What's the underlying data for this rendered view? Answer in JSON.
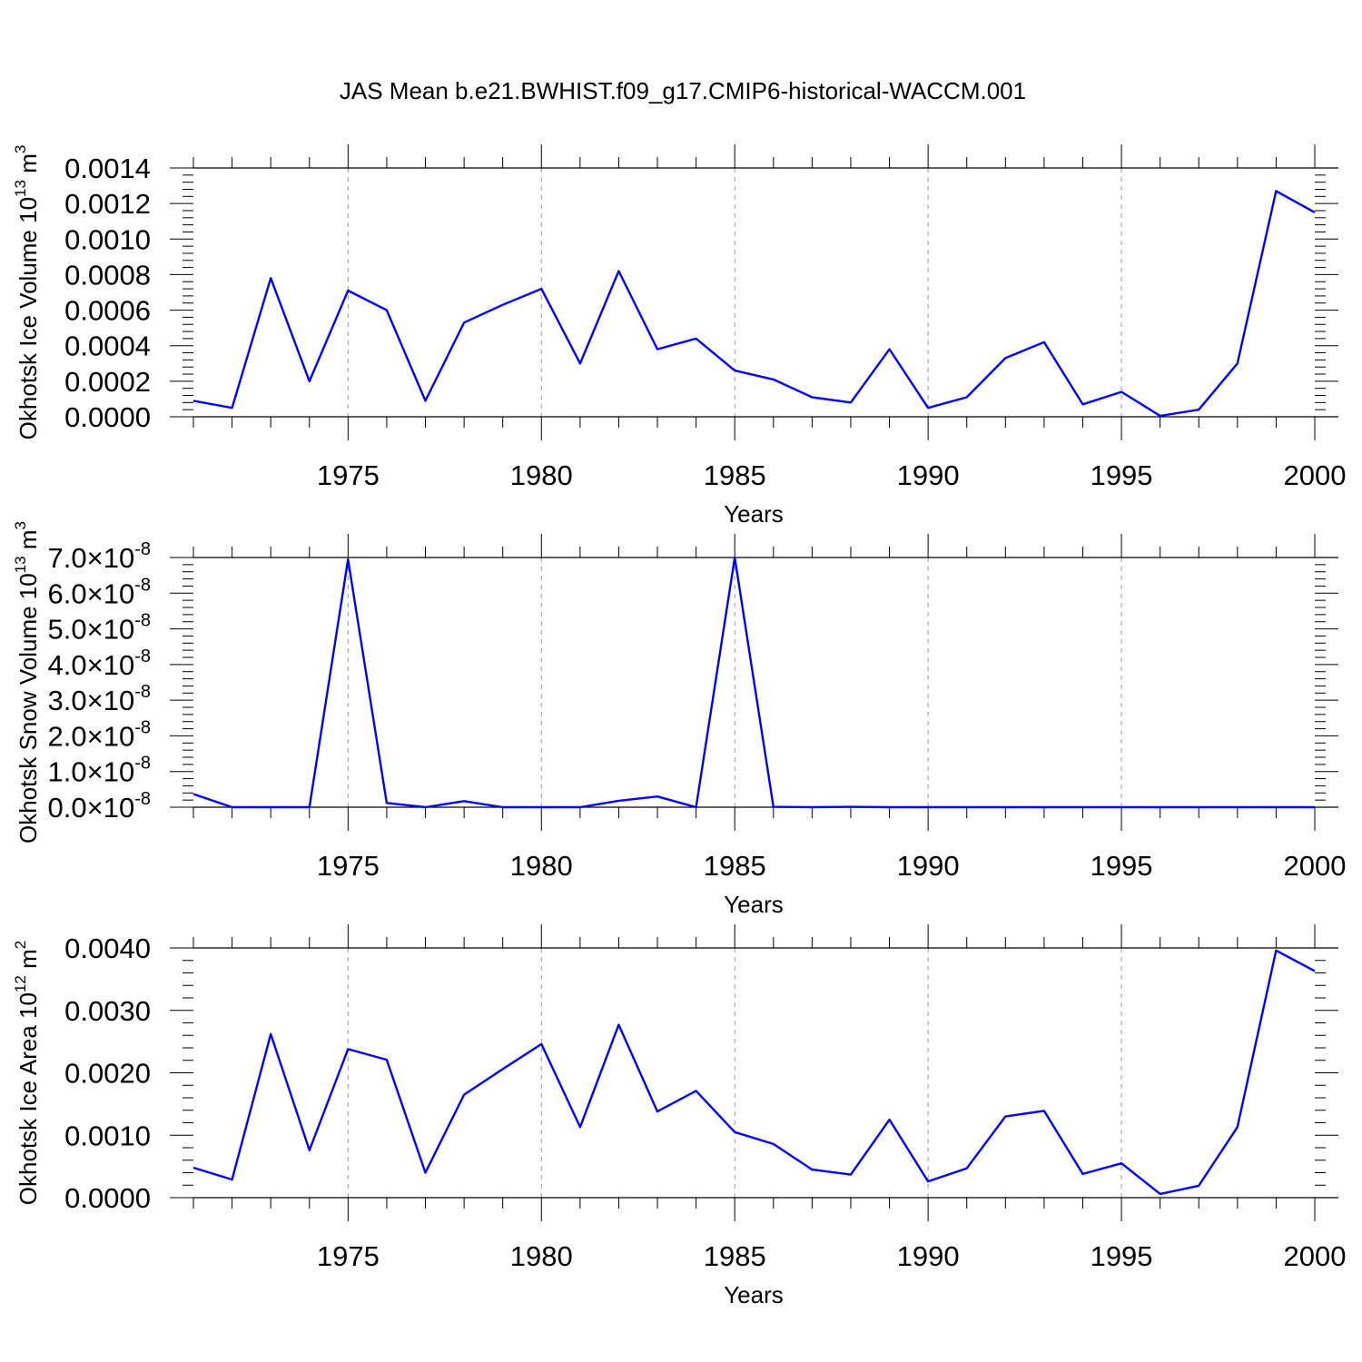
{
  "title": "JAS Mean b.e21.BWHIST.f09_g17.CMIP6-historical-WACCM.001",
  "colors": {
    "series": "#0000ff",
    "axis": "#000000",
    "grid": "#9a9a9a"
  },
  "chart_data": [
    {
      "type": "line",
      "ylabel": "Okhotsk Ice Volume 10",
      "ylabel_exp": "13",
      "ylabel_unit": " m",
      "ylabel_unit_exp": "3",
      "xlabel": "Years",
      "xlim": [
        1971,
        2000
      ],
      "ylim": [
        0,
        0.0014
      ],
      "x_tick_values": [
        1975,
        1980,
        1985,
        1990,
        1995,
        2000
      ],
      "x_tick_labels": [
        "1975",
        "1980",
        "1985",
        "1990",
        "1995",
        "2000"
      ],
      "y_tick_values": [
        0,
        0.0002,
        0.0004,
        0.0006,
        0.0008,
        0.001,
        0.0012,
        0.0014
      ],
      "y_tick_labels": [
        "0.0000",
        "0.0002",
        "0.0004",
        "0.0006",
        "0.0008",
        "0.0010",
        "0.0012",
        "0.0014"
      ],
      "x": [
        1971,
        1972,
        1973,
        1974,
        1975,
        1976,
        1977,
        1978,
        1979,
        1980,
        1981,
        1982,
        1983,
        1984,
        1985,
        1986,
        1987,
        1988,
        1989,
        1990,
        1991,
        1992,
        1993,
        1994,
        1995,
        1996,
        1997,
        1998,
        1999,
        2000
      ],
      "values": [
        9e-05,
        5e-05,
        0.00078,
        0.0002,
        0.00071,
        0.0006,
        9e-05,
        0.00053,
        0.00063,
        0.00072,
        0.0003,
        0.00082,
        0.00038,
        0.00044,
        0.00026,
        0.00021,
        0.00011,
        8e-05,
        0.00038,
        5e-05,
        0.00011,
        0.00033,
        0.00042,
        7e-05,
        0.00014,
        5e-06,
        4e-05,
        0.0003,
        0.00127,
        0.00115
      ]
    },
    {
      "type": "line",
      "ylabel": "Okhotsk Snow Volume 10",
      "ylabel_exp": "13",
      "ylabel_unit": " m",
      "ylabel_unit_exp": "3",
      "xlabel": "Years",
      "xlim": [
        1971,
        2000
      ],
      "ylim": [
        0,
        7e-08
      ],
      "x_tick_values": [
        1975,
        1980,
        1985,
        1990,
        1995,
        2000
      ],
      "x_tick_labels": [
        "1975",
        "1980",
        "1985",
        "1990",
        "1995",
        "2000"
      ],
      "y_tick_values": [
        0,
        1e-08,
        2e-08,
        3e-08,
        4e-08,
        5e-08,
        6e-08,
        7e-08
      ],
      "y_tick_mantissas": [
        "0.0",
        "1.0",
        "2.0",
        "3.0",
        "4.0",
        "5.0",
        "6.0",
        "7.0"
      ],
      "y_tick_times": "×10",
      "y_tick_exponent": "-8",
      "x": [
        1971,
        1972,
        1973,
        1974,
        1975,
        1976,
        1977,
        1978,
        1979,
        1980,
        1981,
        1982,
        1983,
        1984,
        1985,
        1986,
        1987,
        1988,
        1989,
        1990,
        1991,
        1992,
        1993,
        1994,
        1995,
        1996,
        1997,
        1998,
        1999,
        2000
      ],
      "values": [
        3.7e-09,
        0,
        0,
        0,
        6.95e-08,
        1.2e-09,
        0,
        1.7e-09,
        0,
        0,
        0,
        1.8e-09,
        3e-09,
        0,
        7e-08,
        1e-10,
        0,
        1e-10,
        0,
        0,
        0,
        0,
        0,
        0,
        0,
        0,
        0,
        0,
        0,
        0
      ]
    },
    {
      "type": "line",
      "ylabel": "Okhotsk Ice Area 10",
      "ylabel_exp": "12",
      "ylabel_unit": " m",
      "ylabel_unit_exp": "2",
      "xlabel": "Years",
      "xlim": [
        1971,
        2000
      ],
      "ylim": [
        0,
        0.004
      ],
      "x_tick_values": [
        1975,
        1980,
        1985,
        1990,
        1995,
        2000
      ],
      "x_tick_labels": [
        "1975",
        "1980",
        "1985",
        "1990",
        "1995",
        "2000"
      ],
      "y_tick_values": [
        0,
        0.001,
        0.002,
        0.003,
        0.004
      ],
      "y_tick_labels": [
        "0.0000",
        "0.0010",
        "0.0020",
        "0.0030",
        "0.0040"
      ],
      "x": [
        1971,
        1972,
        1973,
        1974,
        1975,
        1976,
        1977,
        1978,
        1979,
        1980,
        1981,
        1982,
        1983,
        1984,
        1985,
        1986,
        1987,
        1988,
        1989,
        1990,
        1991,
        1992,
        1993,
        1994,
        1995,
        1996,
        1997,
        1998,
        1999,
        2000
      ],
      "values": [
        0.00048,
        0.00029,
        0.00262,
        0.00076,
        0.00238,
        0.00221,
        0.0004,
        0.00165,
        0.00206,
        0.00246,
        0.00113,
        0.00277,
        0.00138,
        0.00171,
        0.00105,
        0.00086,
        0.00045,
        0.00037,
        0.00125,
        0.00026,
        0.00047,
        0.0013,
        0.00139,
        0.00038,
        0.00055,
        6e-05,
        0.00019,
        0.00113,
        0.00396,
        0.00363
      ]
    }
  ]
}
